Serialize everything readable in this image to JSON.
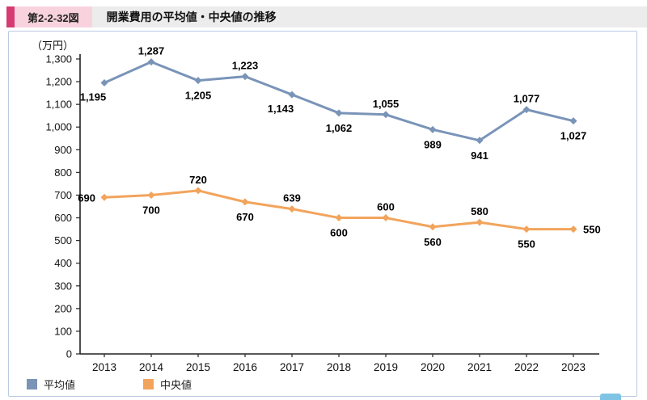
{
  "header": {
    "figure_label": "第2-2-32図",
    "title": "開業費用の平均値・中央値の推移"
  },
  "colors": {
    "accent_bar": "#d63c71",
    "figure_label_bg": "#f8d3de",
    "header_bg": "#ececec",
    "frame_border": "#b9c9e2"
  },
  "chart_data": {
    "type": "line",
    "title": "開業費用の平均値・中央値の推移",
    "unit_label": "（万円）",
    "x": [
      2013,
      2014,
      2015,
      2016,
      2017,
      2018,
      2019,
      2020,
      2021,
      2022,
      2023
    ],
    "ylim": [
      0,
      1300
    ],
    "ytick_step": 100,
    "grid": false,
    "legend_position": "bottom-left",
    "series": [
      {
        "name": "平均値",
        "color": "#7a94b8",
        "values": [
          1195,
          1287,
          1205,
          1223,
          1143,
          1062,
          1055,
          989,
          941,
          1077,
          1027
        ],
        "label_positions": [
          "below-left",
          "above",
          "below",
          "above",
          "below-left",
          "below",
          "above",
          "below",
          "below",
          "above",
          "below"
        ]
      },
      {
        "name": "中央値",
        "color": "#f2a45c",
        "values": [
          690,
          700,
          720,
          670,
          639,
          600,
          600,
          560,
          580,
          550,
          550
        ],
        "label_positions": [
          "left",
          "below",
          "above",
          "below",
          "above",
          "below",
          "above",
          "below",
          "above",
          "below",
          "right"
        ]
      }
    ]
  }
}
